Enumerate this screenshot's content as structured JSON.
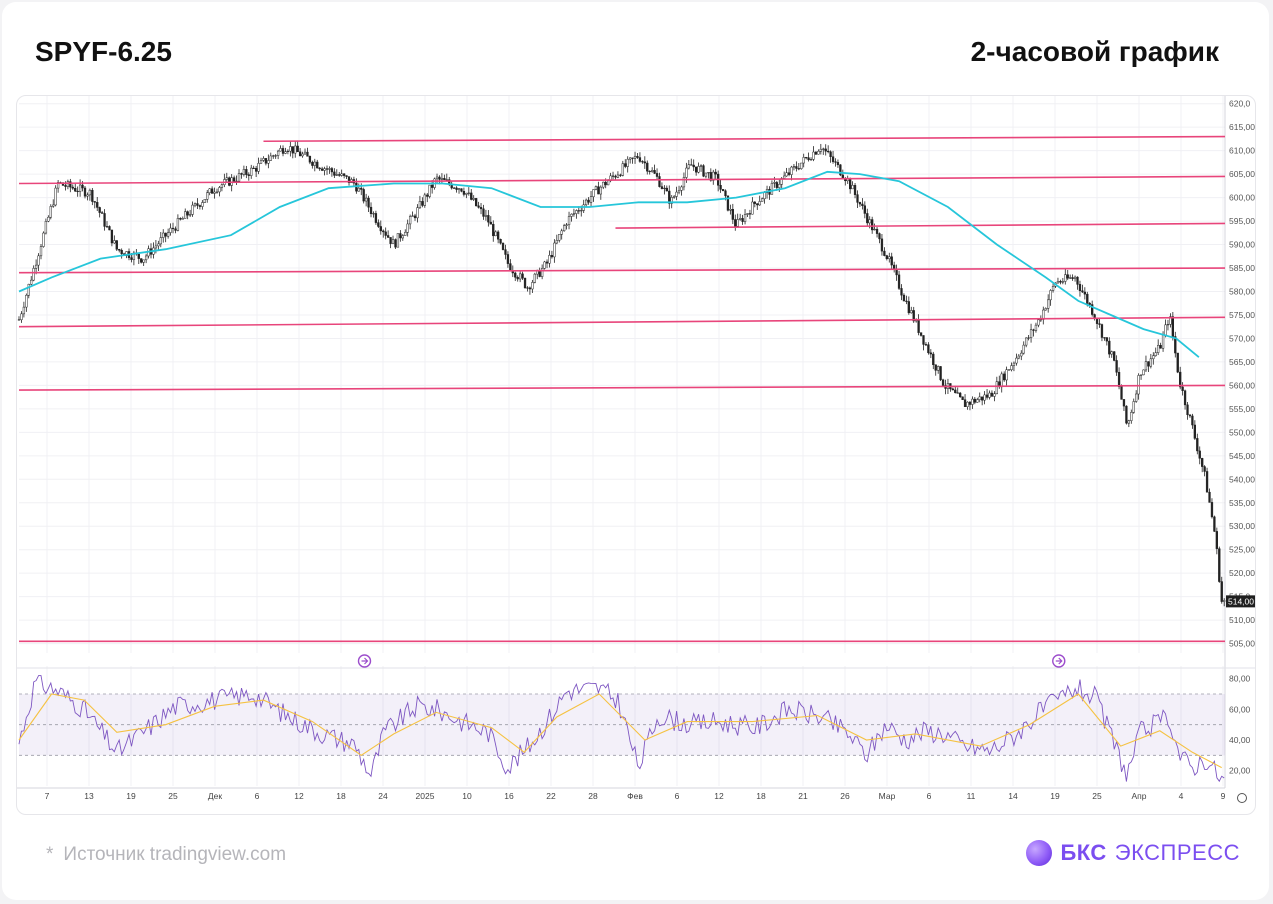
{
  "header": {
    "ticker": "SPYF-6.25",
    "timeframe": "2-часовой график"
  },
  "footer": {
    "star": "*",
    "source": "Источник tradingview.com",
    "logo_bold": "БКС",
    "logo_regular": "ЭКСПРЕСС"
  },
  "colors": {
    "level_line": "#e8457b",
    "moving_average": "#26c6da",
    "candles": "#222222",
    "rsi_line": "#7e57c2",
    "rsi_signal": "#f5c242",
    "rsi_band": "#7e57c2",
    "grid": "#f0f0f4",
    "event_marker": "#9c4dcc"
  },
  "chart_data": [
    {
      "type": "candlestick",
      "title": "",
      "y_axis_ticks": [
        "620,0",
        "615,00",
        "610,00",
        "605,00",
        "600,00",
        "595,00",
        "590,00",
        "585,00",
        "580,00",
        "575,00",
        "570,00",
        "565,00",
        "560,00",
        "555,00",
        "550,00",
        "545,00",
        "540,00",
        "535,00",
        "530,00",
        "525,00",
        "520,00",
        "515,0",
        "510,00",
        "505,00"
      ],
      "ylim": [
        503,
        621
      ],
      "last_price_label": "514,00",
      "x_axis_ticks": [
        "7",
        "13",
        "19",
        "25",
        "Дек",
        "6",
        "12",
        "18",
        "24",
        "2025",
        "10",
        "16",
        "22",
        "28",
        "Фев",
        "6",
        "12",
        "18",
        "21",
        "26",
        "Мар",
        "6",
        "11",
        "14",
        "19",
        "25",
        "Апр",
        "4",
        "9"
      ],
      "price_path": [
        {
          "x": 0,
          "y": 574
        },
        {
          "x": 5,
          "y": 586
        },
        {
          "x": 12,
          "y": 603
        },
        {
          "x": 22,
          "y": 601
        },
        {
          "x": 30,
          "y": 589
        },
        {
          "x": 38,
          "y": 587
        },
        {
          "x": 48,
          "y": 594
        },
        {
          "x": 60,
          "y": 602
        },
        {
          "x": 72,
          "y": 606
        },
        {
          "x": 82,
          "y": 611
        },
        {
          "x": 92,
          "y": 607
        },
        {
          "x": 103,
          "y": 603
        },
        {
          "x": 110,
          "y": 595
        },
        {
          "x": 115,
          "y": 590
        },
        {
          "x": 122,
          "y": 597
        },
        {
          "x": 128,
          "y": 604
        },
        {
          "x": 136,
          "y": 602
        },
        {
          "x": 144,
          "y": 595
        },
        {
          "x": 150,
          "y": 586
        },
        {
          "x": 156,
          "y": 581
        },
        {
          "x": 162,
          "y": 586
        },
        {
          "x": 168,
          "y": 595
        },
        {
          "x": 178,
          "y": 602
        },
        {
          "x": 190,
          "y": 609
        },
        {
          "x": 196,
          "y": 604
        },
        {
          "x": 200,
          "y": 599
        },
        {
          "x": 206,
          "y": 607
        },
        {
          "x": 214,
          "y": 604
        },
        {
          "x": 220,
          "y": 594
        },
        {
          "x": 226,
          "y": 599
        },
        {
          "x": 236,
          "y": 605
        },
        {
          "x": 246,
          "y": 611
        },
        {
          "x": 254,
          "y": 604
        },
        {
          "x": 260,
          "y": 596
        },
        {
          "x": 266,
          "y": 588
        },
        {
          "x": 272,
          "y": 578
        },
        {
          "x": 278,
          "y": 569
        },
        {
          "x": 284,
          "y": 560
        },
        {
          "x": 290,
          "y": 556
        },
        {
          "x": 298,
          "y": 558
        },
        {
          "x": 306,
          "y": 566
        },
        {
          "x": 313,
          "y": 574
        },
        {
          "x": 318,
          "y": 582
        },
        {
          "x": 324,
          "y": 583
        },
        {
          "x": 330,
          "y": 575
        },
        {
          "x": 336,
          "y": 565
        },
        {
          "x": 340,
          "y": 551
        },
        {
          "x": 344,
          "y": 563
        },
        {
          "x": 350,
          "y": 568
        },
        {
          "x": 353,
          "y": 575
        },
        {
          "x": 356,
          "y": 561
        },
        {
          "x": 360,
          "y": 551
        },
        {
          "x": 364,
          "y": 540
        },
        {
          "x": 367,
          "y": 528
        },
        {
          "x": 369,
          "y": 514
        }
      ],
      "x_range": [
        0,
        370
      ],
      "moving_average": [
        {
          "x": 0,
          "y": 580
        },
        {
          "x": 10,
          "y": 583
        },
        {
          "x": 25,
          "y": 587
        },
        {
          "x": 45,
          "y": 589
        },
        {
          "x": 65,
          "y": 592
        },
        {
          "x": 80,
          "y": 598
        },
        {
          "x": 95,
          "y": 602
        },
        {
          "x": 115,
          "y": 603
        },
        {
          "x": 130,
          "y": 603
        },
        {
          "x": 145,
          "y": 602
        },
        {
          "x": 160,
          "y": 598
        },
        {
          "x": 175,
          "y": 598
        },
        {
          "x": 190,
          "y": 599
        },
        {
          "x": 205,
          "y": 599
        },
        {
          "x": 220,
          "y": 600
        },
        {
          "x": 235,
          "y": 602
        },
        {
          "x": 248,
          "y": 605.5
        },
        {
          "x": 258,
          "y": 605
        },
        {
          "x": 270,
          "y": 603.5
        },
        {
          "x": 285,
          "y": 598
        },
        {
          "x": 300,
          "y": 590
        },
        {
          "x": 315,
          "y": 583
        },
        {
          "x": 325,
          "y": 578
        },
        {
          "x": 335,
          "y": 575
        },
        {
          "x": 345,
          "y": 572
        },
        {
          "x": 355,
          "y": 570
        },
        {
          "x": 362,
          "y": 566
        }
      ],
      "levels": [
        {
          "x1": 75,
          "y1": 612,
          "x2": 370,
          "y2": 613
        },
        {
          "x1": 0,
          "y1": 603,
          "x2": 370,
          "y2": 604.5
        },
        {
          "x1": 183,
          "y1": 593.5,
          "x2": 370,
          "y2": 594.5
        },
        {
          "x1": 0,
          "y1": 584,
          "x2": 370,
          "y2": 585
        },
        {
          "x1": 0,
          "y1": 572.5,
          "x2": 370,
          "y2": 574.5
        },
        {
          "x1": 0,
          "y1": 559,
          "x2": 370,
          "y2": 560
        },
        {
          "x1": 0,
          "y1": 505.5,
          "x2": 370,
          "y2": 505.5
        }
      ],
      "event_markers_x": [
        106,
        319
      ]
    },
    {
      "type": "line",
      "title": "",
      "y_axis_ticks": [
        "80,00",
        "60,00",
        "40,00",
        "20,00"
      ],
      "ylim": [
        10,
        85
      ],
      "band": [
        30,
        70
      ],
      "rsi_path": [
        {
          "x": 0,
          "y": 38
        },
        {
          "x": 5,
          "y": 78
        },
        {
          "x": 12,
          "y": 72
        },
        {
          "x": 20,
          "y": 60
        },
        {
          "x": 30,
          "y": 32
        },
        {
          "x": 38,
          "y": 45
        },
        {
          "x": 48,
          "y": 62
        },
        {
          "x": 60,
          "y": 66
        },
        {
          "x": 72,
          "y": 70
        },
        {
          "x": 82,
          "y": 56
        },
        {
          "x": 92,
          "y": 45
        },
        {
          "x": 103,
          "y": 37
        },
        {
          "x": 108,
          "y": 17
        },
        {
          "x": 112,
          "y": 45
        },
        {
          "x": 122,
          "y": 62
        },
        {
          "x": 128,
          "y": 60
        },
        {
          "x": 136,
          "y": 52
        },
        {
          "x": 144,
          "y": 45
        },
        {
          "x": 150,
          "y": 22
        },
        {
          "x": 156,
          "y": 35
        },
        {
          "x": 162,
          "y": 52
        },
        {
          "x": 168,
          "y": 72
        },
        {
          "x": 178,
          "y": 74
        },
        {
          "x": 184,
          "y": 65
        },
        {
          "x": 190,
          "y": 22
        },
        {
          "x": 196,
          "y": 56
        },
        {
          "x": 206,
          "y": 50
        },
        {
          "x": 214,
          "y": 52
        },
        {
          "x": 220,
          "y": 50
        },
        {
          "x": 226,
          "y": 48
        },
        {
          "x": 236,
          "y": 60
        },
        {
          "x": 246,
          "y": 55
        },
        {
          "x": 254,
          "y": 45
        },
        {
          "x": 260,
          "y": 30
        },
        {
          "x": 266,
          "y": 50
        },
        {
          "x": 272,
          "y": 40
        },
        {
          "x": 278,
          "y": 46
        },
        {
          "x": 284,
          "y": 44
        },
        {
          "x": 290,
          "y": 36
        },
        {
          "x": 298,
          "y": 33
        },
        {
          "x": 306,
          "y": 44
        },
        {
          "x": 313,
          "y": 58
        },
        {
          "x": 318,
          "y": 65
        },
        {
          "x": 324,
          "y": 74
        },
        {
          "x": 330,
          "y": 68
        },
        {
          "x": 336,
          "y": 38
        },
        {
          "x": 340,
          "y": 17
        },
        {
          "x": 344,
          "y": 45
        },
        {
          "x": 350,
          "y": 52
        },
        {
          "x": 353,
          "y": 55
        },
        {
          "x": 356,
          "y": 30
        },
        {
          "x": 360,
          "y": 22
        },
        {
          "x": 364,
          "y": 28
        },
        {
          "x": 369,
          "y": 14
        }
      ],
      "signal_path": [
        {
          "x": 0,
          "y": 40
        },
        {
          "x": 10,
          "y": 70
        },
        {
          "x": 20,
          "y": 66
        },
        {
          "x": 30,
          "y": 45
        },
        {
          "x": 45,
          "y": 50
        },
        {
          "x": 60,
          "y": 62
        },
        {
          "x": 75,
          "y": 66
        },
        {
          "x": 90,
          "y": 52
        },
        {
          "x": 105,
          "y": 30
        },
        {
          "x": 115,
          "y": 44
        },
        {
          "x": 128,
          "y": 58
        },
        {
          "x": 145,
          "y": 48
        },
        {
          "x": 155,
          "y": 32
        },
        {
          "x": 165,
          "y": 55
        },
        {
          "x": 178,
          "y": 70
        },
        {
          "x": 192,
          "y": 40
        },
        {
          "x": 205,
          "y": 52
        },
        {
          "x": 225,
          "y": 52
        },
        {
          "x": 245,
          "y": 56
        },
        {
          "x": 260,
          "y": 40
        },
        {
          "x": 275,
          "y": 44
        },
        {
          "x": 295,
          "y": 36
        },
        {
          "x": 310,
          "y": 50
        },
        {
          "x": 325,
          "y": 70
        },
        {
          "x": 338,
          "y": 36
        },
        {
          "x": 350,
          "y": 46
        },
        {
          "x": 360,
          "y": 32
        },
        {
          "x": 369,
          "y": 22
        }
      ]
    }
  ]
}
